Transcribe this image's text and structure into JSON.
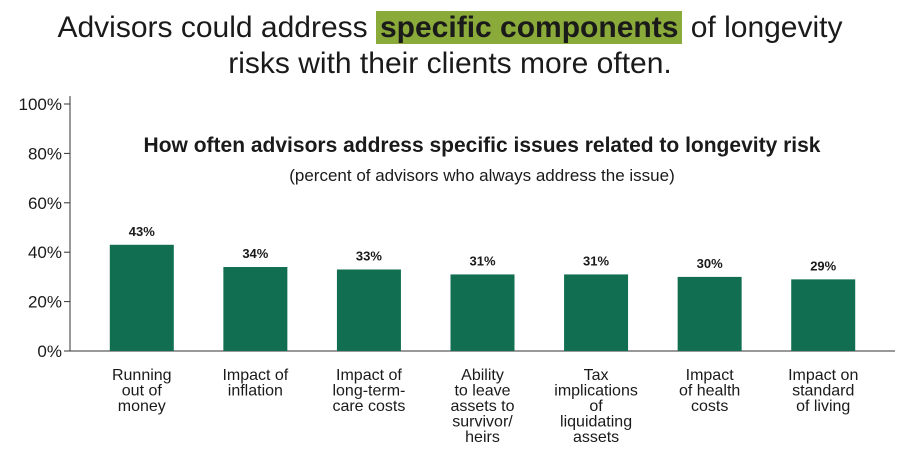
{
  "headline": {
    "prefix": "Advisors could address",
    "highlight": "specific components",
    "suffix": "of longevity",
    "line2": "risks with their clients more often."
  },
  "colors": {
    "bar": "#116e50",
    "highlight": "#8aaa3a",
    "axis": "#333333"
  },
  "chart_data": {
    "type": "bar",
    "title": "How often advisors address specific issues related to longevity risk",
    "subtitle": "(percent of advisors who always address the issue)",
    "categories": [
      [
        "Running",
        "out of",
        "money"
      ],
      [
        "Impact of",
        "inflation"
      ],
      [
        "Impact of",
        "long-term-",
        "care costs"
      ],
      [
        "Ability",
        "to leave",
        "assets to",
        "survivor/",
        "heirs"
      ],
      [
        "Tax",
        "implications",
        "of",
        "liquidating",
        "assets"
      ],
      [
        "Impact",
        "of health",
        "costs"
      ],
      [
        "Impact on",
        "standard",
        "of living"
      ]
    ],
    "values": [
      43,
      34,
      33,
      31,
      31,
      30,
      29
    ],
    "value_labels": [
      "43%",
      "34%",
      "33%",
      "31%",
      "31%",
      "30%",
      "29%"
    ],
    "ylim": [
      0,
      100
    ],
    "yticks": [
      0,
      20,
      40,
      60,
      80,
      100
    ],
    "ytick_labels": [
      "0%",
      "20%",
      "40%",
      "60%",
      "80%",
      "100%"
    ],
    "xlabel": "",
    "ylabel": ""
  }
}
